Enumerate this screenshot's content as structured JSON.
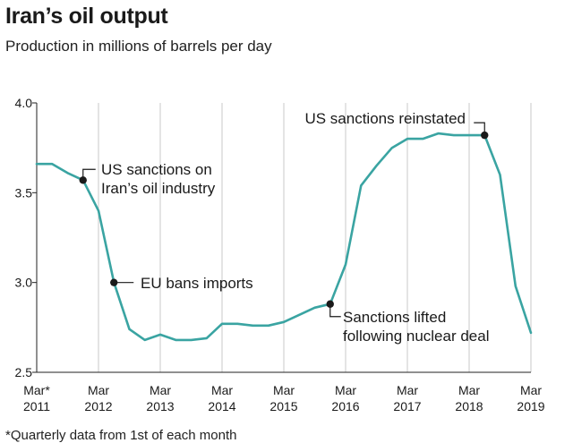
{
  "title": "Iran’s oil output",
  "subtitle": "Production in millions of barrels per day",
  "footnote": "*Quarterly data from 1st of each month",
  "chart_data": {
    "type": "line",
    "title": "Iran’s oil output",
    "ylabel": "Production in millions of barrels per day",
    "xlabel": "",
    "ylim": [
      2.5,
      4.0
    ],
    "yticks": [
      2.5,
      3.0,
      3.5,
      4.0
    ],
    "ytick_labels": [
      "2.5",
      "3.0",
      "3.5",
      "4.0"
    ],
    "xticks": [
      {
        "t": 0,
        "line1": "Mar*",
        "line2": "2011"
      },
      {
        "t": 4,
        "line1": "Mar",
        "line2": "2012"
      },
      {
        "t": 8,
        "line1": "Mar",
        "line2": "2013"
      },
      {
        "t": 12,
        "line1": "Mar",
        "line2": "2014"
      },
      {
        "t": 16,
        "line1": "Mar",
        "line2": "2015"
      },
      {
        "t": 20,
        "line1": "Mar",
        "line2": "2016"
      },
      {
        "t": 24,
        "line1": "Mar",
        "line2": "2017"
      },
      {
        "t": 28,
        "line1": "Mar",
        "line2": "2018"
      },
      {
        "t": 32,
        "line1": "Mar",
        "line2": "2019"
      }
    ],
    "grid": "vertical",
    "x_unit": "quarters since Mar 2011",
    "series": [
      {
        "name": "Iran oil output",
        "x": [
          0,
          1,
          2,
          3,
          4,
          5,
          6,
          7,
          8,
          9,
          10,
          11,
          12,
          13,
          14,
          15,
          16,
          17,
          18,
          19,
          20,
          21,
          22,
          23,
          24,
          25,
          26,
          27,
          28,
          29,
          30,
          31,
          32
        ],
        "values": [
          3.66,
          3.66,
          3.61,
          3.57,
          3.4,
          3.0,
          2.74,
          2.68,
          2.71,
          2.68,
          2.68,
          2.69,
          2.77,
          2.77,
          2.76,
          2.76,
          2.78,
          2.82,
          2.86,
          2.88,
          3.1,
          3.54,
          3.65,
          3.75,
          3.8,
          3.8,
          3.83,
          3.82,
          3.82,
          3.82,
          3.6,
          2.98,
          2.72
        ]
      }
    ],
    "annotations": [
      {
        "index": 3,
        "label_lines": [
          "US sanctions on",
          "Iran’s oil industry"
        ]
      },
      {
        "index": 5,
        "label_lines": [
          "EU bans imports"
        ]
      },
      {
        "index": 19,
        "label_lines": [
          "Sanctions lifted",
          "following nuclear deal"
        ]
      },
      {
        "index": 29,
        "label_lines": [
          "US sanctions reinstated"
        ]
      }
    ],
    "colors": {
      "line": "#3aa4a2",
      "grid": "#c8c8c8",
      "axis": "#222222",
      "dot": "#1a1a1a"
    }
  }
}
